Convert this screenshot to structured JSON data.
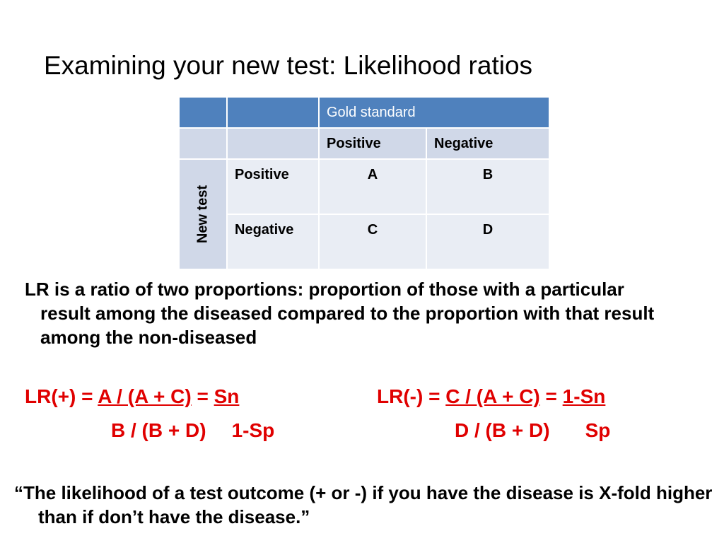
{
  "slide": {
    "title": "Examining your new test: Likelihood ratios"
  },
  "table": {
    "header_gold": "Gold standard",
    "col_positive": "Positive",
    "col_negative": "Negative",
    "row_group": "New test",
    "row_positive": "Positive",
    "row_negative": "Negative",
    "cell_a": "A",
    "cell_b": "B",
    "cell_c": "C",
    "cell_d": "D"
  },
  "paragraph": "LR is a ratio of two proportions: proportion of those with a particular result among the diseased compared to the proportion with that result among the non-diseased",
  "formula_pos": {
    "prefix": "LR(+) = ",
    "numerator": "A / (A + C)",
    "equals": " = ",
    "result_num": "Sn",
    "denominator": "B / (B + D)",
    "result_den": "1-Sp"
  },
  "formula_neg": {
    "prefix": "LR(-) = ",
    "numerator": "C / (A + C)",
    "equals": " = ",
    "result_num": "1-Sn",
    "denominator": "D / (B + D)",
    "result_den": "Sp"
  },
  "quote": "“The likelihood of a test outcome (+ or -) if you have the disease is X-fold higher than if don’t have the disease.”"
}
